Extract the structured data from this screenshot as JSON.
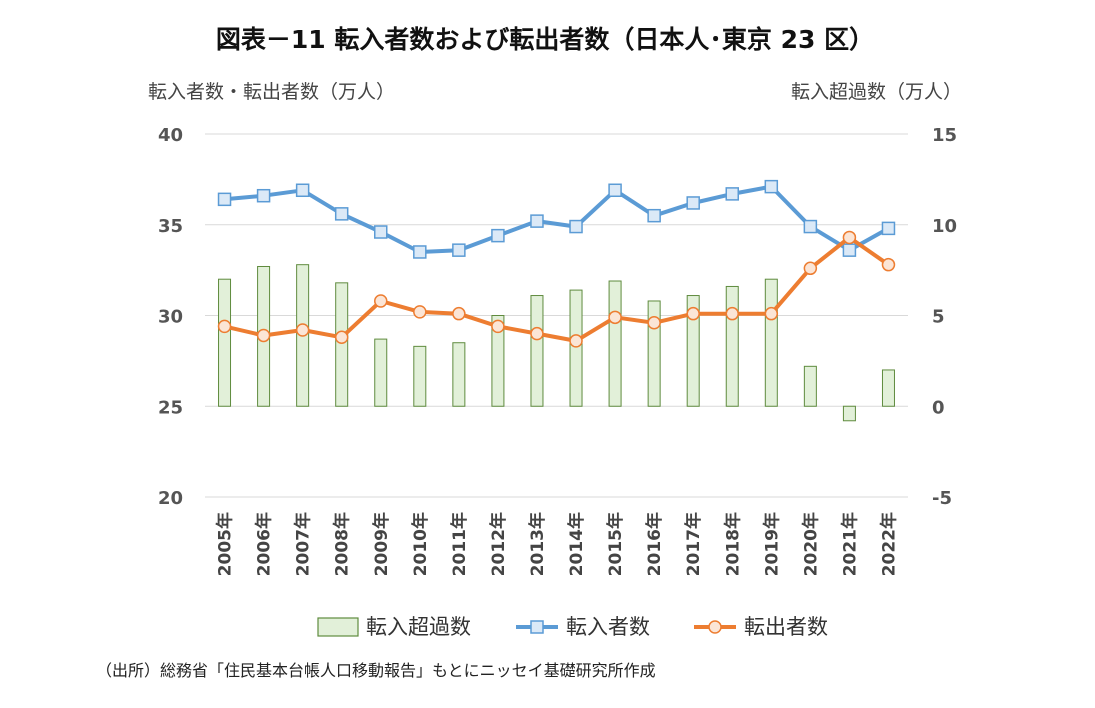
{
  "chart_data": {
    "type": "bar+line",
    "title": "図表－11 転入者数および転出者数（日本人･東京 23 区）",
    "left_axis_label": "転入者数・転出者数（万人）",
    "right_axis_label": "転入超過数（万人）",
    "categories": [
      "2005年",
      "2006年",
      "2007年",
      "2008年",
      "2009年",
      "2010年",
      "2011年",
      "2012年",
      "2013年",
      "2014年",
      "2015年",
      "2016年",
      "2017年",
      "2018年",
      "2019年",
      "2020年",
      "2021年",
      "2022年"
    ],
    "left_axis": {
      "min": 20,
      "max": 40,
      "ticks": [
        40,
        35,
        30,
        25,
        20
      ]
    },
    "right_axis": {
      "min": -5,
      "max": 15,
      "ticks": [
        15,
        10,
        5,
        0,
        -5
      ]
    },
    "series": [
      {
        "name": "転入超過数",
        "type": "bar",
        "axis": "right",
        "color": "#e2f0d9",
        "border": "#5f8b3e",
        "values": [
          7.0,
          7.7,
          7.8,
          6.8,
          3.7,
          3.3,
          3.5,
          5.0,
          6.1,
          6.4,
          6.9,
          5.8,
          6.1,
          6.6,
          7.0,
          2.2,
          -0.8,
          2.0
        ]
      },
      {
        "name": "転入者数",
        "type": "line",
        "axis": "left",
        "color": "#5b9bd5",
        "marker": "square",
        "values": [
          36.4,
          36.6,
          36.9,
          35.6,
          34.6,
          33.5,
          33.6,
          34.4,
          35.2,
          34.9,
          36.9,
          35.5,
          36.2,
          36.7,
          37.1,
          34.9,
          33.6,
          34.8
        ]
      },
      {
        "name": "転出者数",
        "type": "line",
        "axis": "left",
        "color": "#ed7d31",
        "marker": "circle",
        "values": [
          29.4,
          28.9,
          29.2,
          28.8,
          30.8,
          30.2,
          30.1,
          29.4,
          29.0,
          28.6,
          29.9,
          29.6,
          30.1,
          30.1,
          30.1,
          32.6,
          34.3,
          32.8
        ]
      }
    ],
    "legend_position": "bottom",
    "grid": "horizontal",
    "source": "（出所）総務省「住民基本台帳人口移動報告」もとにニッセイ基礎研究所作成"
  }
}
